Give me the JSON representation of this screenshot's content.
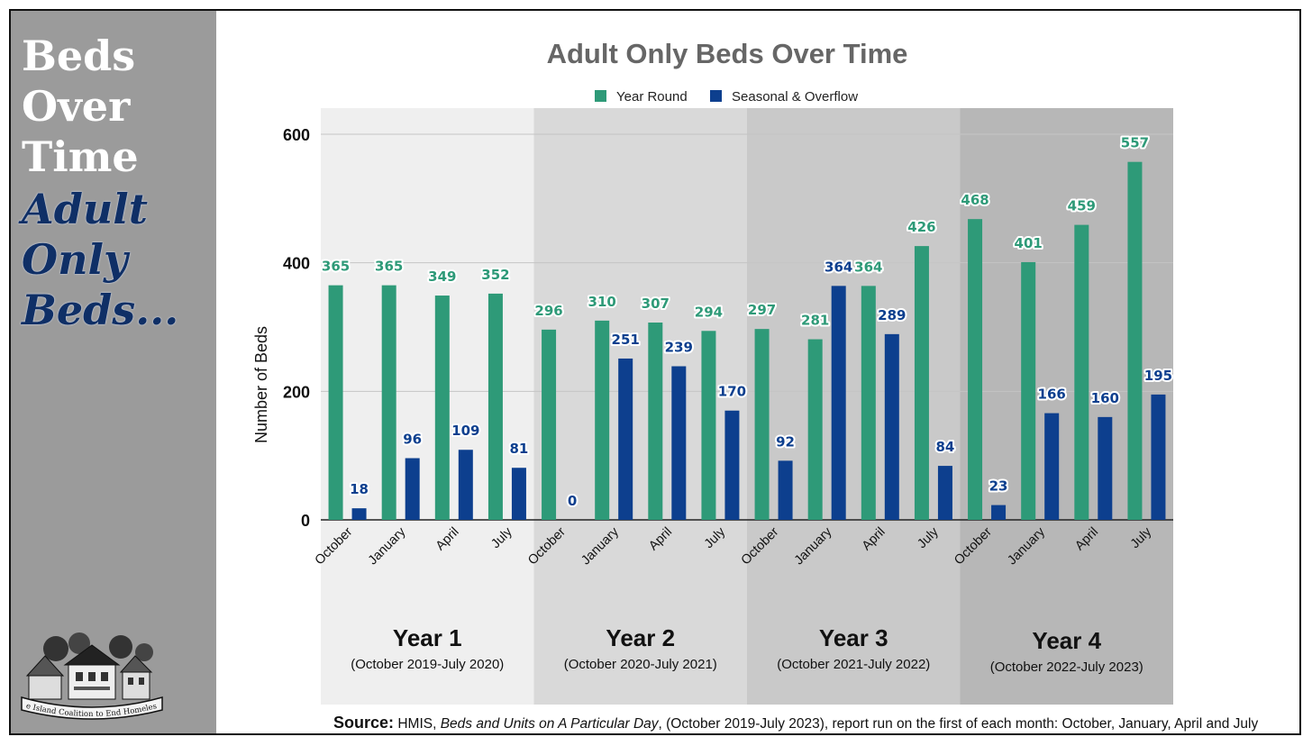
{
  "sidebar": {
    "words_white": [
      "Beds",
      "Over",
      "Time"
    ],
    "words_blue": [
      "Adult",
      "Only",
      "Beds..."
    ],
    "logo_text": "Rhode Island Coalition to End Homelessness"
  },
  "source": {
    "label": "Source:",
    "prefix": "HMIS,",
    "title": "Beds and Units on A Particular Day",
    "suffix": ", (October 2019-July 2023), report run on the first of each month: October, January, April and July"
  },
  "colors": {
    "year_round": "#2e9a78",
    "seasonal": "#0d3f8e",
    "sidebar_bg": "#9b9b9b",
    "band_shades": [
      "#efefef",
      "#d9d9d9",
      "#c9c9c9",
      "#b7b7b7"
    ]
  },
  "chart_data": {
    "type": "bar",
    "title": "Adult Only Beds Over Time",
    "ylabel": "Number of Beds",
    "xlabel": "",
    "ylim": [
      0,
      600
    ],
    "yticks": [
      0,
      200,
      400,
      600
    ],
    "grid": true,
    "legend_position": "top",
    "categories": [
      "October",
      "January",
      "April",
      "July",
      "October",
      "January",
      "April",
      "July",
      "October",
      "January",
      "April",
      "July",
      "October",
      "January",
      "April",
      "July"
    ],
    "series": [
      {
        "name": "Year Round",
        "values": [
          365,
          365,
          349,
          352,
          296,
          310,
          307,
          294,
          297,
          281,
          364,
          426,
          468,
          401,
          459,
          557
        ]
      },
      {
        "name": "Seasonal & Overflow",
        "values": [
          18,
          96,
          109,
          81,
          0,
          251,
          239,
          170,
          92,
          364,
          289,
          84,
          23,
          166,
          160,
          195
        ]
      }
    ],
    "groups": [
      {
        "label": "Year 1",
        "sublabel": "(October 2019-July 2020)"
      },
      {
        "label": "Year 2",
        "sublabel": "(October 2020-July 2021)"
      },
      {
        "label": "Year 3",
        "sublabel": "(October 2021-July 2022)"
      },
      {
        "label": "Year 4",
        "sublabel": "(October 2022-July 2023)"
      }
    ]
  }
}
